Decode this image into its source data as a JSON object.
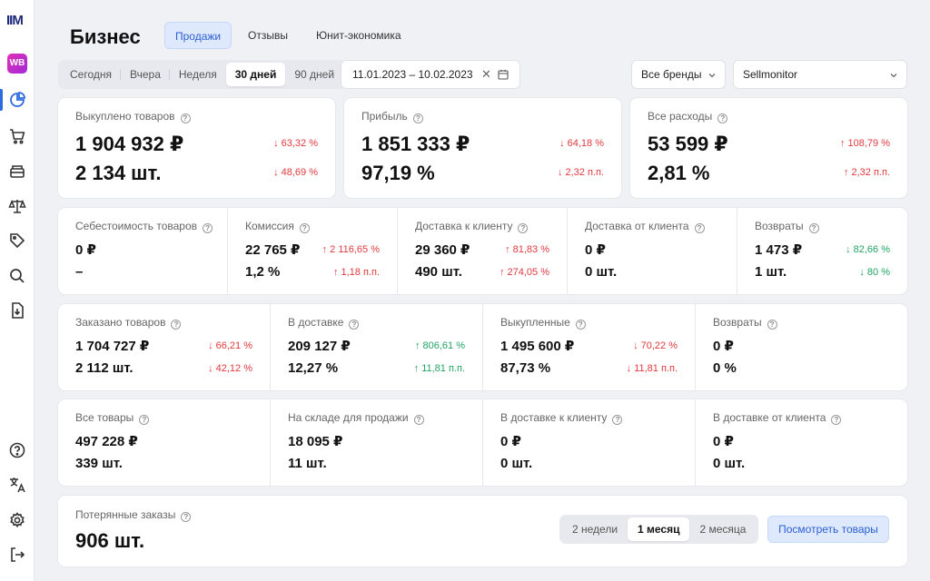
{
  "sidebar": {
    "logo": "IIM",
    "marketplace": "WB",
    "icons": [
      "pie-chart-icon",
      "cart-icon",
      "box-icon",
      "scales-icon",
      "tag-icon",
      "search-icon",
      "download-icon",
      "help-icon",
      "translate-icon",
      "gear-icon",
      "logout-icon"
    ]
  },
  "header": {
    "title": "Бизнес",
    "tabs": [
      {
        "label": "Продажи",
        "active": true
      },
      {
        "label": "Отзывы"
      },
      {
        "label": "Юнит-экономика"
      }
    ]
  },
  "filters": {
    "periods": [
      {
        "label": "Сегодня"
      },
      {
        "label": "Вчера"
      },
      {
        "label": "Неделя"
      },
      {
        "label": "30 дней",
        "active": true
      },
      {
        "label": "90 дней"
      }
    ],
    "date_range": "11.01.2023 – 10.02.2023",
    "brand_select": "Все бренды",
    "shop_select": "Sellmonitor"
  },
  "summary": [
    {
      "label": "Выкуплено товаров",
      "v1": "1 904 932 ₽",
      "c1": "63,32 %",
      "d1": "down",
      "v2": "2 134 шт.",
      "c2": "48,69 %",
      "d2": "down"
    },
    {
      "label": "Прибыль",
      "v1": "1 851 333 ₽",
      "c1": "64,18 %",
      "d1": "down",
      "v2": "97,19 %",
      "c2": "2,32 п.п.",
      "d2": "down"
    },
    {
      "label": "Все расходы",
      "v1": "53 599 ₽",
      "c1": "108,79 %",
      "d1": "up-red",
      "v2": "2,81 %",
      "c2": "2,32 п.п.",
      "d2": "up-red"
    }
  ],
  "costs": [
    {
      "label": "Себестоимость товаров",
      "v1": "0 ₽",
      "c1": "",
      "v2": "–",
      "c2": ""
    },
    {
      "label": "Комиссия",
      "v1": "22 765 ₽",
      "c1": "2 116,65 %",
      "d1": "up-red",
      "v2": "1,2 %",
      "c2": "1,18 п.п.",
      "d2": "up-red"
    },
    {
      "label": "Доставка к клиенту",
      "v1": "29 360 ₽",
      "c1": "81,83 %",
      "d1": "up-red",
      "v2": "490 шт.",
      "c2": "274,05 %",
      "d2": "up-red"
    },
    {
      "label": "Доставка от клиента",
      "v1": "0 ₽",
      "c1": "",
      "v2": "0 шт.",
      "c2": ""
    },
    {
      "label": "Возвраты",
      "v1": "1 473 ₽",
      "c1": "82,66 %",
      "d1": "down-green",
      "v2": "1 шт.",
      "c2": "80 %",
      "d2": "down-green"
    }
  ],
  "orders": [
    {
      "label": "Заказано товаров",
      "v1": "1 704 727 ₽",
      "c1": "66,21 %",
      "d1": "down",
      "v2": "2 112 шт.",
      "c2": "42,12 %",
      "d2": "down"
    },
    {
      "label": "В доставке",
      "v1": "209 127 ₽",
      "c1": "806,61 %",
      "d1": "up-green",
      "v2": "12,27 %",
      "c2": "11,81 п.п.",
      "d2": "up-green"
    },
    {
      "label": "Выкупленные",
      "v1": "1 495 600 ₽",
      "c1": "70,22 %",
      "d1": "down",
      "v2": "87,73 %",
      "c2": "11,81 п.п.",
      "d2": "down"
    },
    {
      "label": "Возвраты",
      "v1": "0 ₽",
      "c1": "",
      "v2": "0 %",
      "c2": ""
    }
  ],
  "stock": [
    {
      "label": "Все товары",
      "v1": "497 228 ₽",
      "v2": "339 шт."
    },
    {
      "label": "На складе для продажи",
      "v1": "18 095 ₽",
      "v2": "11 шт."
    },
    {
      "label": "В доставке к клиенту",
      "v1": "0 ₽",
      "v2": "0 шт."
    },
    {
      "label": "В доставке от клиента",
      "v1": "0 ₽",
      "v2": "0 шт."
    }
  ],
  "lost": {
    "label": "Потерянные заказы",
    "value": "906 шт.",
    "ranges": [
      {
        "label": "2 недели"
      },
      {
        "label": "1 месяц",
        "active": true
      },
      {
        "label": "2 месяца"
      }
    ],
    "button": "Посмотреть товары"
  },
  "colors": {
    "accent": "#2a5fd0",
    "accent_bg": "#dfe9fd",
    "negative": "#e0393e",
    "positive": "#1fa463"
  }
}
